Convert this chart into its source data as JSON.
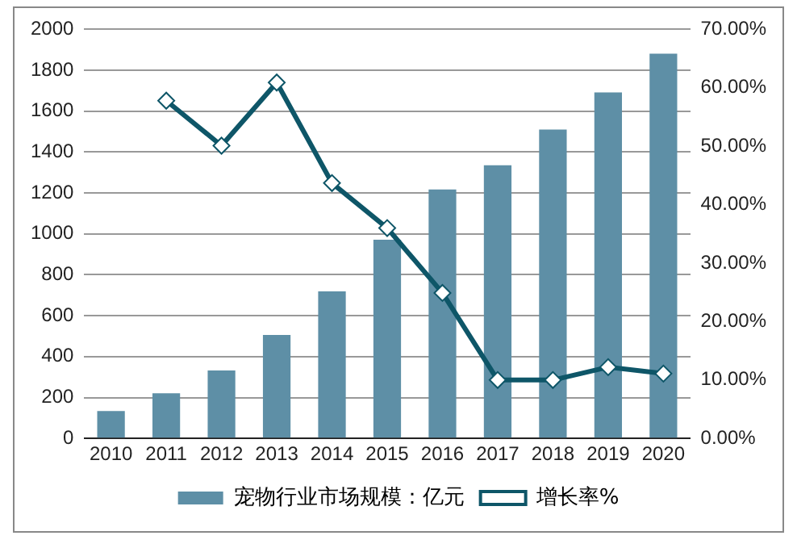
{
  "chart_data": {
    "type": "bar",
    "categories": [
      "2010",
      "2011",
      "2012",
      "2013",
      "2014",
      "2015",
      "2016",
      "2017",
      "2018",
      "2019",
      "2020"
    ],
    "series": [
      {
        "name": "宠物行业市场规模：亿元",
        "color": "#5e8fa6",
        "values": [
          134,
          221,
          332,
          506,
          719,
          972,
          1217,
          1336,
          1510,
          1692,
          1881
        ]
      },
      {
        "name": "增长率%",
        "type": "line",
        "axis": "y2",
        "color": "#0e5668",
        "marker": "diamond",
        "values": [
          null,
          57.8,
          50.1,
          60.9,
          43.7,
          36.0,
          24.9,
          10.0,
          10.0,
          12.2,
          11.1
        ]
      }
    ],
    "ylim": [
      0,
      2000
    ],
    "yticks": [
      0,
      200,
      400,
      600,
      800,
      1000,
      1200,
      1400,
      1600,
      1800,
      2000
    ],
    "y2lim": [
      0,
      70
    ],
    "y2ticks": [
      {
        "value": 0,
        "label": "0.00%"
      },
      {
        "value": 10,
        "label": "10.00%"
      },
      {
        "value": 20,
        "label": "20.00%"
      },
      {
        "value": 30,
        "label": "30.00%"
      },
      {
        "value": 40,
        "label": "40.00%"
      },
      {
        "value": 50,
        "label": "50.00%"
      },
      {
        "value": 60,
        "label": "60.00%"
      },
      {
        "value": 70,
        "label": "70.00%"
      }
    ],
    "grid": "y",
    "legend": "bottom"
  }
}
